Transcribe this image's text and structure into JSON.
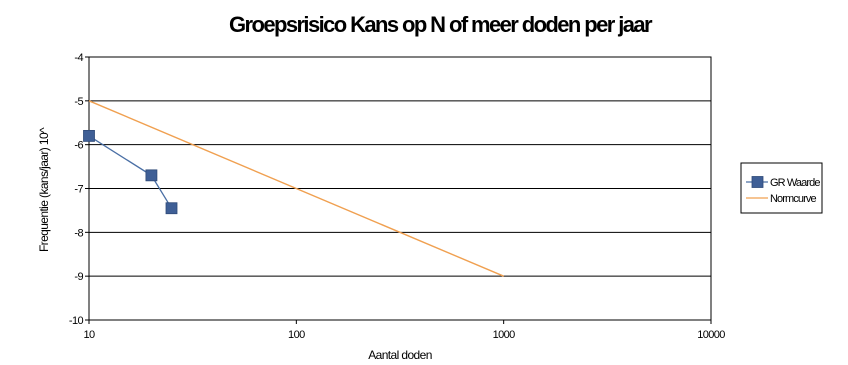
{
  "chart_data": {
    "type": "line",
    "title": "Groepsrisico Kans op N of meer doden per jaar",
    "xlabel": "Aantal doden",
    "ylabel": "Frequentie (kans/jaar) 10^",
    "x_scale": "log",
    "xlim": [
      10,
      10000
    ],
    "ylim": [
      -10,
      -4
    ],
    "x_ticks": [
      "10",
      "100",
      "1000",
      "10000"
    ],
    "y_ticks": [
      "-4",
      "-5",
      "-6",
      "-7",
      "-8",
      "-9",
      "-10"
    ],
    "grid": "horizontal",
    "legend_position": "right",
    "series": [
      {
        "name": "GR Waarde",
        "color": "#4a6fa5",
        "marker": "square",
        "points": [
          {
            "x": 10,
            "y": -5.8
          },
          {
            "x": 20,
            "y": -6.7
          },
          {
            "x": 25,
            "y": -7.45
          }
        ]
      },
      {
        "name": "Normcurve",
        "color": "#f0a050",
        "marker": "none",
        "points": [
          {
            "x": 10,
            "y": -5
          },
          {
            "x": 1000,
            "y": -9
          }
        ]
      }
    ]
  }
}
